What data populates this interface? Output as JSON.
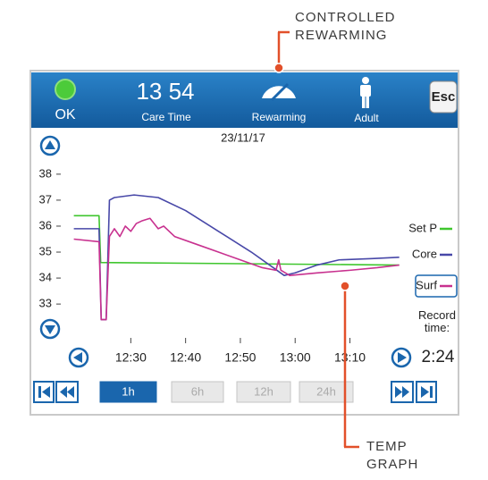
{
  "annotations": {
    "top": "CONTROLLED REWARMING",
    "bottom": "TEMP GRAPH"
  },
  "status_bar": {
    "status": "OK",
    "clock": "13 54",
    "clock_label": "Care Time",
    "mode": "Rewarming",
    "patient": "Adult",
    "escape": "Esc"
  },
  "chart_data": {
    "type": "line",
    "title": "23/11/17",
    "xlim": [
      739.5,
      801.5
    ],
    "xticks": [
      {
        "value": 750,
        "label": "12:30"
      },
      {
        "value": 760,
        "label": "12:40"
      },
      {
        "value": 770,
        "label": "12:50"
      },
      {
        "value": 780,
        "label": "13:00"
      },
      {
        "value": 790,
        "label": "13:10"
      }
    ],
    "ylim": [
      31.8,
      39.2
    ],
    "yticks": [
      33,
      34,
      35,
      36,
      37,
      38
    ],
    "series": [
      {
        "name": "Set P",
        "color": "#3fc62e",
        "x": [
          739.6,
          744.2,
          744.5,
          799
        ],
        "values": [
          36.4,
          36.4,
          34.6,
          34.5
        ]
      },
      {
        "name": "Core",
        "color": "#4848a8",
        "x": [
          739.6,
          744.2,
          744.6,
          745.5,
          746.1,
          747,
          750.6,
          755,
          760,
          766,
          772,
          776,
          778,
          780,
          784,
          788,
          794,
          799
        ],
        "values": [
          35.9,
          35.9,
          32.4,
          32.4,
          37.0,
          37.1,
          37.2,
          37.1,
          36.6,
          35.8,
          35.0,
          34.4,
          34.1,
          34.2,
          34.5,
          34.7,
          34.75,
          34.8
        ]
      },
      {
        "name": "Surf",
        "color": "#c8318f",
        "x": [
          739.6,
          744.2,
          744.6,
          745.5,
          746.1,
          747,
          748,
          749,
          750,
          751,
          752,
          753.5,
          755,
          756,
          758,
          762,
          766,
          770,
          774,
          776.5,
          777,
          777.4,
          779,
          784,
          790,
          795,
          799
        ],
        "values": [
          35.5,
          35.4,
          32.4,
          32.4,
          35.6,
          35.9,
          35.6,
          36.0,
          35.8,
          36.1,
          36.2,
          36.3,
          35.9,
          36.0,
          35.6,
          35.3,
          35.0,
          34.7,
          34.4,
          34.3,
          34.7,
          34.3,
          34.1,
          34.2,
          34.3,
          34.4,
          34.5
        ]
      }
    ],
    "record_label": "Record time:",
    "record_time": "2:24"
  },
  "controls": {
    "ranges": [
      "1h",
      "6h",
      "12h",
      "24h"
    ]
  }
}
